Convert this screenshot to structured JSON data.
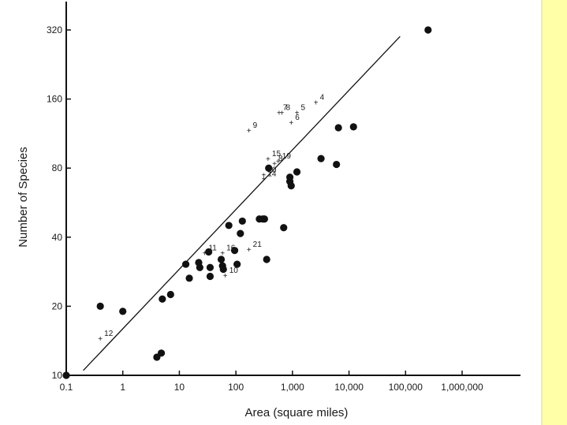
{
  "chart_data": {
    "type": "scatter",
    "xlabel": "Area (square miles)",
    "ylabel": "Number of Species",
    "x_scale": "log",
    "y_scale": "log",
    "xlim": [
      0.1,
      1000000
    ],
    "ylim": [
      10,
      320
    ],
    "x_ticks": [
      {
        "value": 0.1,
        "label": "0.1"
      },
      {
        "value": 1,
        "label": "1"
      },
      {
        "value": 10,
        "label": "10"
      },
      {
        "value": 100,
        "label": "100"
      },
      {
        "value": 1000,
        "label": "1,000"
      },
      {
        "value": 10000,
        "label": "10,000"
      },
      {
        "value": 100000,
        "label": "100,000"
      },
      {
        "value": 1000000,
        "label": "1,000,000"
      }
    ],
    "y_ticks": [
      {
        "value": 10,
        "label": "10"
      },
      {
        "value": 20,
        "label": "20"
      },
      {
        "value": 40,
        "label": "40"
      },
      {
        "value": 80,
        "label": "80"
      },
      {
        "value": 160,
        "label": "160"
      },
      {
        "value": 320,
        "label": "320"
      }
    ],
    "grid": false,
    "fit_line": {
      "x": [
        0.2,
        80000
      ],
      "y": [
        10.5,
        300
      ]
    },
    "points": [
      {
        "x": 0.1,
        "y": 10
      },
      {
        "x": 0.4,
        "y": 20
      },
      {
        "x": 1,
        "y": 19
      },
      {
        "x": 4,
        "y": 12
      },
      {
        "x": 4.8,
        "y": 12.5
      },
      {
        "x": 5,
        "y": 21.5
      },
      {
        "x": 7,
        "y": 22.5
      },
      {
        "x": 13,
        "y": 30.5
      },
      {
        "x": 15,
        "y": 26.5
      },
      {
        "x": 22,
        "y": 31
      },
      {
        "x": 23,
        "y": 29.5
      },
      {
        "x": 33,
        "y": 34.5
      },
      {
        "x": 35,
        "y": 29.5
      },
      {
        "x": 35,
        "y": 27
      },
      {
        "x": 55,
        "y": 32
      },
      {
        "x": 58,
        "y": 30
      },
      {
        "x": 60,
        "y": 29
      },
      {
        "x": 75,
        "y": 45
      },
      {
        "x": 95,
        "y": 35
      },
      {
        "x": 105,
        "y": 30.5
      },
      {
        "x": 120,
        "y": 41.5
      },
      {
        "x": 130,
        "y": 47
      },
      {
        "x": 260,
        "y": 48
      },
      {
        "x": 300,
        "y": 48
      },
      {
        "x": 320,
        "y": 48
      },
      {
        "x": 350,
        "y": 32
      },
      {
        "x": 380,
        "y": 80
      },
      {
        "x": 700,
        "y": 44
      },
      {
        "x": 900,
        "y": 73
      },
      {
        "x": 900,
        "y": 70
      },
      {
        "x": 950,
        "y": 67
      },
      {
        "x": 1200,
        "y": 77
      },
      {
        "x": 3200,
        "y": 88
      },
      {
        "x": 6000,
        "y": 83
      },
      {
        "x": 6500,
        "y": 120
      },
      {
        "x": 12000,
        "y": 121
      },
      {
        "x": 250000,
        "y": 320
      }
    ],
    "labeled_points": [
      {
        "x": 0.4,
        "y": 14.5,
        "label": "12"
      },
      {
        "x": 28,
        "y": 34.2,
        "label": "11"
      },
      {
        "x": 58,
        "y": 34.2,
        "label": "16"
      },
      {
        "x": 65,
        "y": 27.3,
        "label": "10"
      },
      {
        "x": 170,
        "y": 35.5,
        "label": "21"
      },
      {
        "x": 170,
        "y": 117,
        "label": "9"
      },
      {
        "x": 310,
        "y": 75,
        "label": "20"
      },
      {
        "x": 310,
        "y": 72,
        "label": "14"
      },
      {
        "x": 370,
        "y": 88,
        "label": "15"
      },
      {
        "x": 480,
        "y": 84,
        "label": "8"
      },
      {
        "x": 560,
        "y": 86,
        "label": "19"
      },
      {
        "x": 580,
        "y": 140,
        "label": "7"
      },
      {
        "x": 650,
        "y": 140,
        "label": "8"
      },
      {
        "x": 950,
        "y": 127,
        "label": "6"
      },
      {
        "x": 1200,
        "y": 140,
        "label": "5"
      },
      {
        "x": 2600,
        "y": 155,
        "label": "4"
      }
    ]
  }
}
